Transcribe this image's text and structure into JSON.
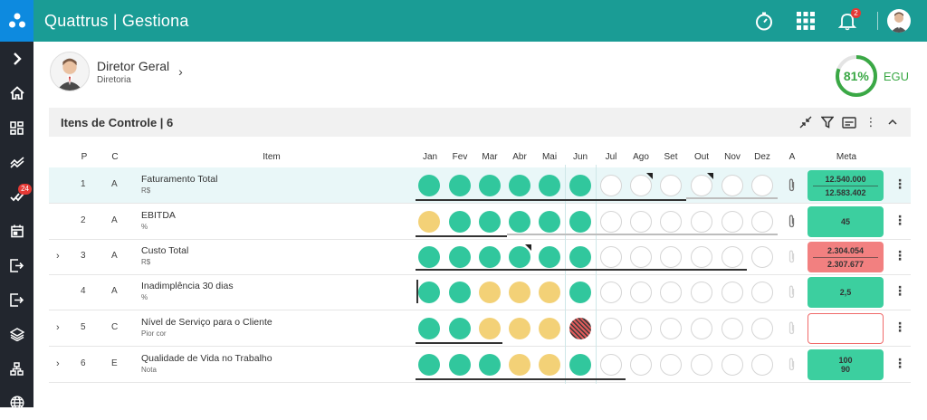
{
  "app": {
    "title": "Quattrus | Gestiona",
    "notifications": "2"
  },
  "sidebar": {
    "items": [
      {
        "icon": "chevron-right-icon"
      },
      {
        "icon": "home-icon"
      },
      {
        "icon": "dashboard-icon"
      },
      {
        "icon": "trend-icon"
      },
      {
        "icon": "tasks-icon",
        "badge": "24"
      },
      {
        "icon": "calendar-icon"
      },
      {
        "icon": "logout-icon"
      },
      {
        "icon": "exit-icon"
      },
      {
        "icon": "layers-icon"
      },
      {
        "icon": "org-chart-icon"
      },
      {
        "icon": "globe-icon"
      }
    ]
  },
  "profile": {
    "name": "Diretor Geral",
    "role": "Diretoria"
  },
  "egu": {
    "value": "81%",
    "label": "EGU",
    "fraction": 0.81
  },
  "panel": {
    "title": "Itens de Controle | 6"
  },
  "columns": {
    "p": "P",
    "c": "C",
    "item": "Item",
    "months": [
      "Jan",
      "Fev",
      "Mar",
      "Abr",
      "Mai",
      "Jun",
      "Jul",
      "Ago",
      "Set",
      "Out",
      "Nov",
      "Dez"
    ],
    "a": "A",
    "meta": "Meta"
  },
  "colors": {
    "green": "#31c79d",
    "yellow": "#f3d177",
    "red": "#e05a5a",
    "teal": "#1a9c95"
  },
  "rows": [
    {
      "p": "1",
      "c": "A",
      "name": "Faturamento Total",
      "unit": "R$",
      "status": [
        "g",
        "g",
        "g",
        "g",
        "g",
        "g",
        "e",
        "e",
        "e",
        "e",
        "e",
        "e"
      ],
      "flags": [
        7,
        9
      ],
      "meta_top": "12.540.000",
      "meta_bottom": "12.583.402",
      "meta_color": "green",
      "expandable": false
    },
    {
      "p": "2",
      "c": "A",
      "name": "EBITDA",
      "unit": "%",
      "status": [
        "y",
        "g",
        "g",
        "g",
        "g",
        "g",
        "e",
        "e",
        "e",
        "e",
        "e",
        "e"
      ],
      "flags": [],
      "meta_top": "",
      "meta_bottom": "45",
      "meta_color": "green",
      "expandable": false
    },
    {
      "p": "3",
      "c": "A",
      "name": "Custo Total",
      "unit": "R$",
      "status": [
        "g",
        "g",
        "g",
        "g",
        "g",
        "g",
        "e",
        "e",
        "e",
        "e",
        "e",
        "e"
      ],
      "flags": [
        3
      ],
      "meta_top": "2.304.054",
      "meta_bottom": "2.307.677",
      "meta_color": "red",
      "expandable": true
    },
    {
      "p": "4",
      "c": "A",
      "name": "Inadimplência 30 dias",
      "unit": "%",
      "status": [
        "g",
        "g",
        "y",
        "y",
        "y",
        "g",
        "e",
        "e",
        "e",
        "e",
        "e",
        "e"
      ],
      "flags": [],
      "meta_top": "2,5",
      "meta_bottom": "",
      "meta_color": "green",
      "expandable": false
    },
    {
      "p": "5",
      "c": "C",
      "name": "Nível de Serviço para o Cliente",
      "unit": "Pior cor",
      "status": [
        "g",
        "g",
        "y",
        "y",
        "y",
        "r",
        "e",
        "e",
        "e",
        "e",
        "e",
        "e"
      ],
      "flags": [],
      "meta_top": "",
      "meta_bottom": "",
      "meta_color": "white",
      "expandable": true
    },
    {
      "p": "6",
      "c": "E",
      "name": "Qualidade de Vida no Trabalho",
      "unit": "Nota",
      "status": [
        "g",
        "g",
        "g",
        "y",
        "y",
        "g",
        "e",
        "e",
        "e",
        "e",
        "e",
        "e"
      ],
      "flags": [],
      "meta_top": "100",
      "meta_bottom": "90",
      "meta_color": "green",
      "expandable": true
    }
  ]
}
